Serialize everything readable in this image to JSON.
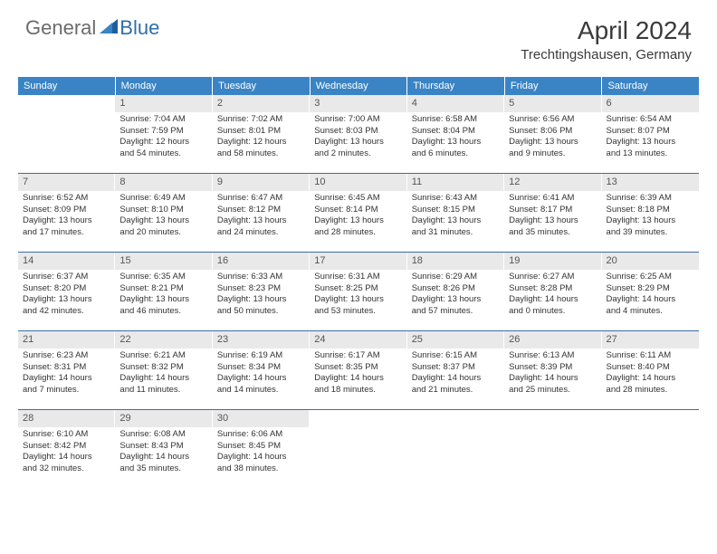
{
  "logo": {
    "general": "General",
    "blue": "Blue"
  },
  "title": "April 2024",
  "location": "Trechtingshausen, Germany",
  "colors": {
    "header_bg": "#3a84c5",
    "header_text": "#ffffff",
    "daynum_bg": "#e9e9e9",
    "daynum_text": "#555555",
    "rule": "#3a6ea5",
    "body_text": "#333333",
    "logo_grey": "#6b6b6b",
    "logo_blue": "#2f6fab"
  },
  "weekdays": [
    "Sunday",
    "Monday",
    "Tuesday",
    "Wednesday",
    "Thursday",
    "Friday",
    "Saturday"
  ],
  "weeks": [
    [
      {
        "day": "",
        "sunrise": "",
        "sunset": "",
        "daylight1": "",
        "daylight2": ""
      },
      {
        "day": "1",
        "sunrise": "Sunrise: 7:04 AM",
        "sunset": "Sunset: 7:59 PM",
        "daylight1": "Daylight: 12 hours",
        "daylight2": "and 54 minutes."
      },
      {
        "day": "2",
        "sunrise": "Sunrise: 7:02 AM",
        "sunset": "Sunset: 8:01 PM",
        "daylight1": "Daylight: 12 hours",
        "daylight2": "and 58 minutes."
      },
      {
        "day": "3",
        "sunrise": "Sunrise: 7:00 AM",
        "sunset": "Sunset: 8:03 PM",
        "daylight1": "Daylight: 13 hours",
        "daylight2": "and 2 minutes."
      },
      {
        "day": "4",
        "sunrise": "Sunrise: 6:58 AM",
        "sunset": "Sunset: 8:04 PM",
        "daylight1": "Daylight: 13 hours",
        "daylight2": "and 6 minutes."
      },
      {
        "day": "5",
        "sunrise": "Sunrise: 6:56 AM",
        "sunset": "Sunset: 8:06 PM",
        "daylight1": "Daylight: 13 hours",
        "daylight2": "and 9 minutes."
      },
      {
        "day": "6",
        "sunrise": "Sunrise: 6:54 AM",
        "sunset": "Sunset: 8:07 PM",
        "daylight1": "Daylight: 13 hours",
        "daylight2": "and 13 minutes."
      }
    ],
    [
      {
        "day": "7",
        "sunrise": "Sunrise: 6:52 AM",
        "sunset": "Sunset: 8:09 PM",
        "daylight1": "Daylight: 13 hours",
        "daylight2": "and 17 minutes."
      },
      {
        "day": "8",
        "sunrise": "Sunrise: 6:49 AM",
        "sunset": "Sunset: 8:10 PM",
        "daylight1": "Daylight: 13 hours",
        "daylight2": "and 20 minutes."
      },
      {
        "day": "9",
        "sunrise": "Sunrise: 6:47 AM",
        "sunset": "Sunset: 8:12 PM",
        "daylight1": "Daylight: 13 hours",
        "daylight2": "and 24 minutes."
      },
      {
        "day": "10",
        "sunrise": "Sunrise: 6:45 AM",
        "sunset": "Sunset: 8:14 PM",
        "daylight1": "Daylight: 13 hours",
        "daylight2": "and 28 minutes."
      },
      {
        "day": "11",
        "sunrise": "Sunrise: 6:43 AM",
        "sunset": "Sunset: 8:15 PM",
        "daylight1": "Daylight: 13 hours",
        "daylight2": "and 31 minutes."
      },
      {
        "day": "12",
        "sunrise": "Sunrise: 6:41 AM",
        "sunset": "Sunset: 8:17 PM",
        "daylight1": "Daylight: 13 hours",
        "daylight2": "and 35 minutes."
      },
      {
        "day": "13",
        "sunrise": "Sunrise: 6:39 AM",
        "sunset": "Sunset: 8:18 PM",
        "daylight1": "Daylight: 13 hours",
        "daylight2": "and 39 minutes."
      }
    ],
    [
      {
        "day": "14",
        "sunrise": "Sunrise: 6:37 AM",
        "sunset": "Sunset: 8:20 PM",
        "daylight1": "Daylight: 13 hours",
        "daylight2": "and 42 minutes."
      },
      {
        "day": "15",
        "sunrise": "Sunrise: 6:35 AM",
        "sunset": "Sunset: 8:21 PM",
        "daylight1": "Daylight: 13 hours",
        "daylight2": "and 46 minutes."
      },
      {
        "day": "16",
        "sunrise": "Sunrise: 6:33 AM",
        "sunset": "Sunset: 8:23 PM",
        "daylight1": "Daylight: 13 hours",
        "daylight2": "and 50 minutes."
      },
      {
        "day": "17",
        "sunrise": "Sunrise: 6:31 AM",
        "sunset": "Sunset: 8:25 PM",
        "daylight1": "Daylight: 13 hours",
        "daylight2": "and 53 minutes."
      },
      {
        "day": "18",
        "sunrise": "Sunrise: 6:29 AM",
        "sunset": "Sunset: 8:26 PM",
        "daylight1": "Daylight: 13 hours",
        "daylight2": "and 57 minutes."
      },
      {
        "day": "19",
        "sunrise": "Sunrise: 6:27 AM",
        "sunset": "Sunset: 8:28 PM",
        "daylight1": "Daylight: 14 hours",
        "daylight2": "and 0 minutes."
      },
      {
        "day": "20",
        "sunrise": "Sunrise: 6:25 AM",
        "sunset": "Sunset: 8:29 PM",
        "daylight1": "Daylight: 14 hours",
        "daylight2": "and 4 minutes."
      }
    ],
    [
      {
        "day": "21",
        "sunrise": "Sunrise: 6:23 AM",
        "sunset": "Sunset: 8:31 PM",
        "daylight1": "Daylight: 14 hours",
        "daylight2": "and 7 minutes."
      },
      {
        "day": "22",
        "sunrise": "Sunrise: 6:21 AM",
        "sunset": "Sunset: 8:32 PM",
        "daylight1": "Daylight: 14 hours",
        "daylight2": "and 11 minutes."
      },
      {
        "day": "23",
        "sunrise": "Sunrise: 6:19 AM",
        "sunset": "Sunset: 8:34 PM",
        "daylight1": "Daylight: 14 hours",
        "daylight2": "and 14 minutes."
      },
      {
        "day": "24",
        "sunrise": "Sunrise: 6:17 AM",
        "sunset": "Sunset: 8:35 PM",
        "daylight1": "Daylight: 14 hours",
        "daylight2": "and 18 minutes."
      },
      {
        "day": "25",
        "sunrise": "Sunrise: 6:15 AM",
        "sunset": "Sunset: 8:37 PM",
        "daylight1": "Daylight: 14 hours",
        "daylight2": "and 21 minutes."
      },
      {
        "day": "26",
        "sunrise": "Sunrise: 6:13 AM",
        "sunset": "Sunset: 8:39 PM",
        "daylight1": "Daylight: 14 hours",
        "daylight2": "and 25 minutes."
      },
      {
        "day": "27",
        "sunrise": "Sunrise: 6:11 AM",
        "sunset": "Sunset: 8:40 PM",
        "daylight1": "Daylight: 14 hours",
        "daylight2": "and 28 minutes."
      }
    ],
    [
      {
        "day": "28",
        "sunrise": "Sunrise: 6:10 AM",
        "sunset": "Sunset: 8:42 PM",
        "daylight1": "Daylight: 14 hours",
        "daylight2": "and 32 minutes."
      },
      {
        "day": "29",
        "sunrise": "Sunrise: 6:08 AM",
        "sunset": "Sunset: 8:43 PM",
        "daylight1": "Daylight: 14 hours",
        "daylight2": "and 35 minutes."
      },
      {
        "day": "30",
        "sunrise": "Sunrise: 6:06 AM",
        "sunset": "Sunset: 8:45 PM",
        "daylight1": "Daylight: 14 hours",
        "daylight2": "and 38 minutes."
      },
      {
        "day": "",
        "sunrise": "",
        "sunset": "",
        "daylight1": "",
        "daylight2": ""
      },
      {
        "day": "",
        "sunrise": "",
        "sunset": "",
        "daylight1": "",
        "daylight2": ""
      },
      {
        "day": "",
        "sunrise": "",
        "sunset": "",
        "daylight1": "",
        "daylight2": ""
      },
      {
        "day": "",
        "sunrise": "",
        "sunset": "",
        "daylight1": "",
        "daylight2": ""
      }
    ]
  ]
}
